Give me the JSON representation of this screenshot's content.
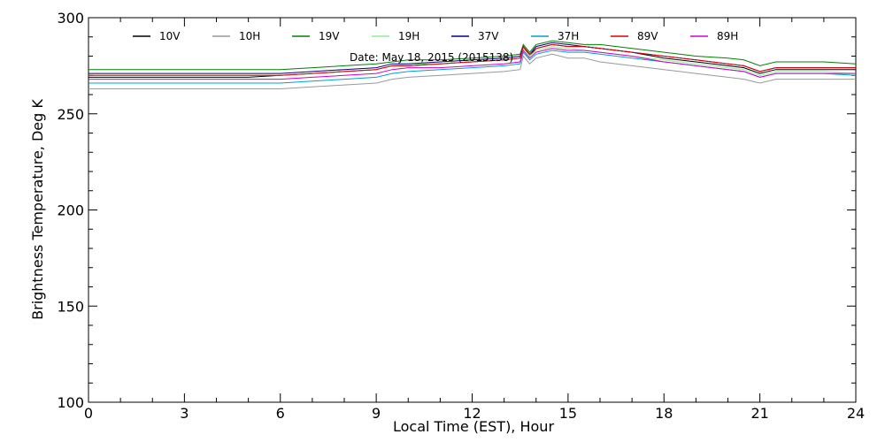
{
  "chart_data": {
    "type": "line",
    "title": "",
    "annotation": "Date: May 18, 2015 (2015138)",
    "xlabel": "Local Time (EST), Hour",
    "ylabel": "Brightness Temperature, Deg K",
    "xlim": [
      0,
      24
    ],
    "ylim": [
      100,
      300
    ],
    "xticks": [
      0,
      3,
      6,
      9,
      12,
      15,
      18,
      21,
      24
    ],
    "xtick_labels": [
      "0",
      "3",
      "6",
      "9",
      "12",
      "15",
      "18",
      "21",
      "24"
    ],
    "yticks": [
      100,
      150,
      200,
      250,
      300
    ],
    "ytick_labels": [
      "100",
      "150",
      "200",
      "250",
      "300"
    ],
    "grid": false,
    "legend_position": "top",
    "x": [
      0,
      1,
      2,
      3,
      4,
      5,
      6,
      7,
      8,
      9,
      9.5,
      10,
      11,
      12,
      13,
      13.5,
      13.6,
      13.8,
      14,
      14.5,
      15,
      15.5,
      16,
      17,
      18,
      19,
      20,
      20.5,
      21,
      21.5,
      22,
      23,
      24
    ],
    "series": [
      {
        "name": "10V",
        "color": "#000000",
        "values": [
          269,
          269,
          269,
          269,
          269,
          269,
          270,
          271,
          272,
          273,
          275,
          275,
          276,
          277,
          278,
          279,
          285,
          280,
          284,
          286,
          285,
          285,
          284,
          282,
          279,
          277,
          275,
          274,
          271,
          273,
          273,
          273,
          273
        ]
      },
      {
        "name": "10H",
        "color": "#999999",
        "values": [
          263,
          263,
          263,
          263,
          263,
          263,
          263,
          264,
          265,
          266,
          268,
          269,
          270,
          271,
          272,
          273,
          280,
          276,
          279,
          281,
          279,
          279,
          277,
          275,
          273,
          271,
          269,
          268,
          266,
          268,
          268,
          268,
          268
        ]
      },
      {
        "name": "19V",
        "color": "#008000",
        "values": [
          273,
          273,
          273,
          273,
          273,
          273,
          273,
          274,
          275,
          276,
          277,
          278,
          278,
          279,
          280,
          281,
          286,
          282,
          286,
          288,
          287,
          286,
          286,
          284,
          282,
          280,
          279,
          278,
          275,
          277,
          277,
          277,
          276
        ]
      },
      {
        "name": "19H",
        "color": "#90ee90",
        "values": [
          270,
          270,
          270,
          270,
          270,
          270,
          270,
          271,
          272,
          273,
          275,
          276,
          276,
          277,
          278,
          279,
          284,
          280,
          283,
          285,
          284,
          283,
          282,
          280,
          278,
          276,
          274,
          273,
          270,
          272,
          272,
          272,
          271
        ]
      },
      {
        "name": "37V",
        "color": "#00008b",
        "values": [
          271,
          271,
          271,
          271,
          271,
          271,
          271,
          272,
          273,
          274,
          276,
          276,
          277,
          278,
          279,
          280,
          285,
          281,
          285,
          287,
          286,
          285,
          284,
          282,
          280,
          278,
          276,
          275,
          272,
          274,
          274,
          274,
          274
        ]
      },
      {
        "name": "37H",
        "color": "#00a0d0",
        "values": [
          266,
          266,
          266,
          266,
          266,
          266,
          266,
          267,
          268,
          269,
          271,
          272,
          273,
          274,
          275,
          276,
          282,
          278,
          281,
          283,
          282,
          282,
          281,
          279,
          277,
          275,
          273,
          272,
          269,
          271,
          271,
          271,
          270
        ]
      },
      {
        "name": "89V",
        "color": "#e00000",
        "values": [
          270,
          270,
          270,
          270,
          270,
          270,
          270,
          271,
          272,
          273,
          275,
          275,
          276,
          277,
          278,
          279,
          285,
          281,
          284,
          286,
          285,
          285,
          284,
          282,
          280,
          278,
          276,
          275,
          272,
          274,
          274,
          274,
          274
        ]
      },
      {
        "name": "89H",
        "color": "#d000d0",
        "values": [
          268,
          268,
          268,
          268,
          268,
          268,
          268,
          269,
          270,
          271,
          273,
          274,
          274,
          275,
          276,
          277,
          283,
          279,
          282,
          284,
          283,
          283,
          282,
          280,
          277,
          275,
          273,
          272,
          269,
          271,
          271,
          271,
          271
        ]
      }
    ]
  }
}
